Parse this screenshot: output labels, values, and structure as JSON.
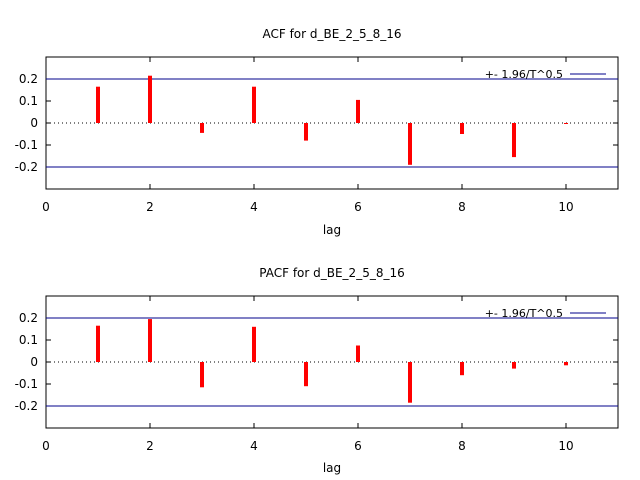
{
  "chart_data": [
    {
      "type": "bar",
      "title": "ACF for d_BE_2_5_8_16",
      "xlabel": "lag",
      "ylabel": "",
      "xlim": [
        0,
        11
      ],
      "ylim": [
        -0.3,
        0.3
      ],
      "xticks": [
        "0",
        "2",
        "4",
        "6",
        "8",
        "10"
      ],
      "yticks": [
        "0.2",
        "0.1",
        "0",
        "-0.1",
        "-0.2"
      ],
      "x": [
        1,
        2,
        3,
        4,
        5,
        6,
        7,
        8,
        9,
        10
      ],
      "values": [
        0.165,
        0.215,
        -0.045,
        0.165,
        -0.08,
        0.105,
        -0.19,
        -0.05,
        -0.155,
        -0.002
      ],
      "confidence_band": 0.2,
      "legend": "+- 1.96/T^0.5",
      "legend_position": "top-right",
      "bar_color": "#ff0000",
      "band_color": "#00008b"
    },
    {
      "type": "bar",
      "title": "PACF for d_BE_2_5_8_16",
      "xlabel": "lag",
      "ylabel": "",
      "xlim": [
        0,
        11
      ],
      "ylim": [
        -0.3,
        0.3
      ],
      "xticks": [
        "0",
        "2",
        "4",
        "6",
        "8",
        "10"
      ],
      "yticks": [
        "0.2",
        "0.1",
        "0",
        "-0.1",
        "-0.2"
      ],
      "x": [
        1,
        2,
        3,
        4,
        5,
        6,
        7,
        8,
        9,
        10
      ],
      "values": [
        0.165,
        0.195,
        -0.115,
        0.16,
        -0.11,
        0.075,
        -0.185,
        -0.06,
        -0.03,
        -0.015
      ],
      "confidence_band": 0.2,
      "legend": "+- 1.96/T^0.5",
      "legend_position": "top-right",
      "bar_color": "#ff0000",
      "band_color": "#00008b"
    }
  ]
}
